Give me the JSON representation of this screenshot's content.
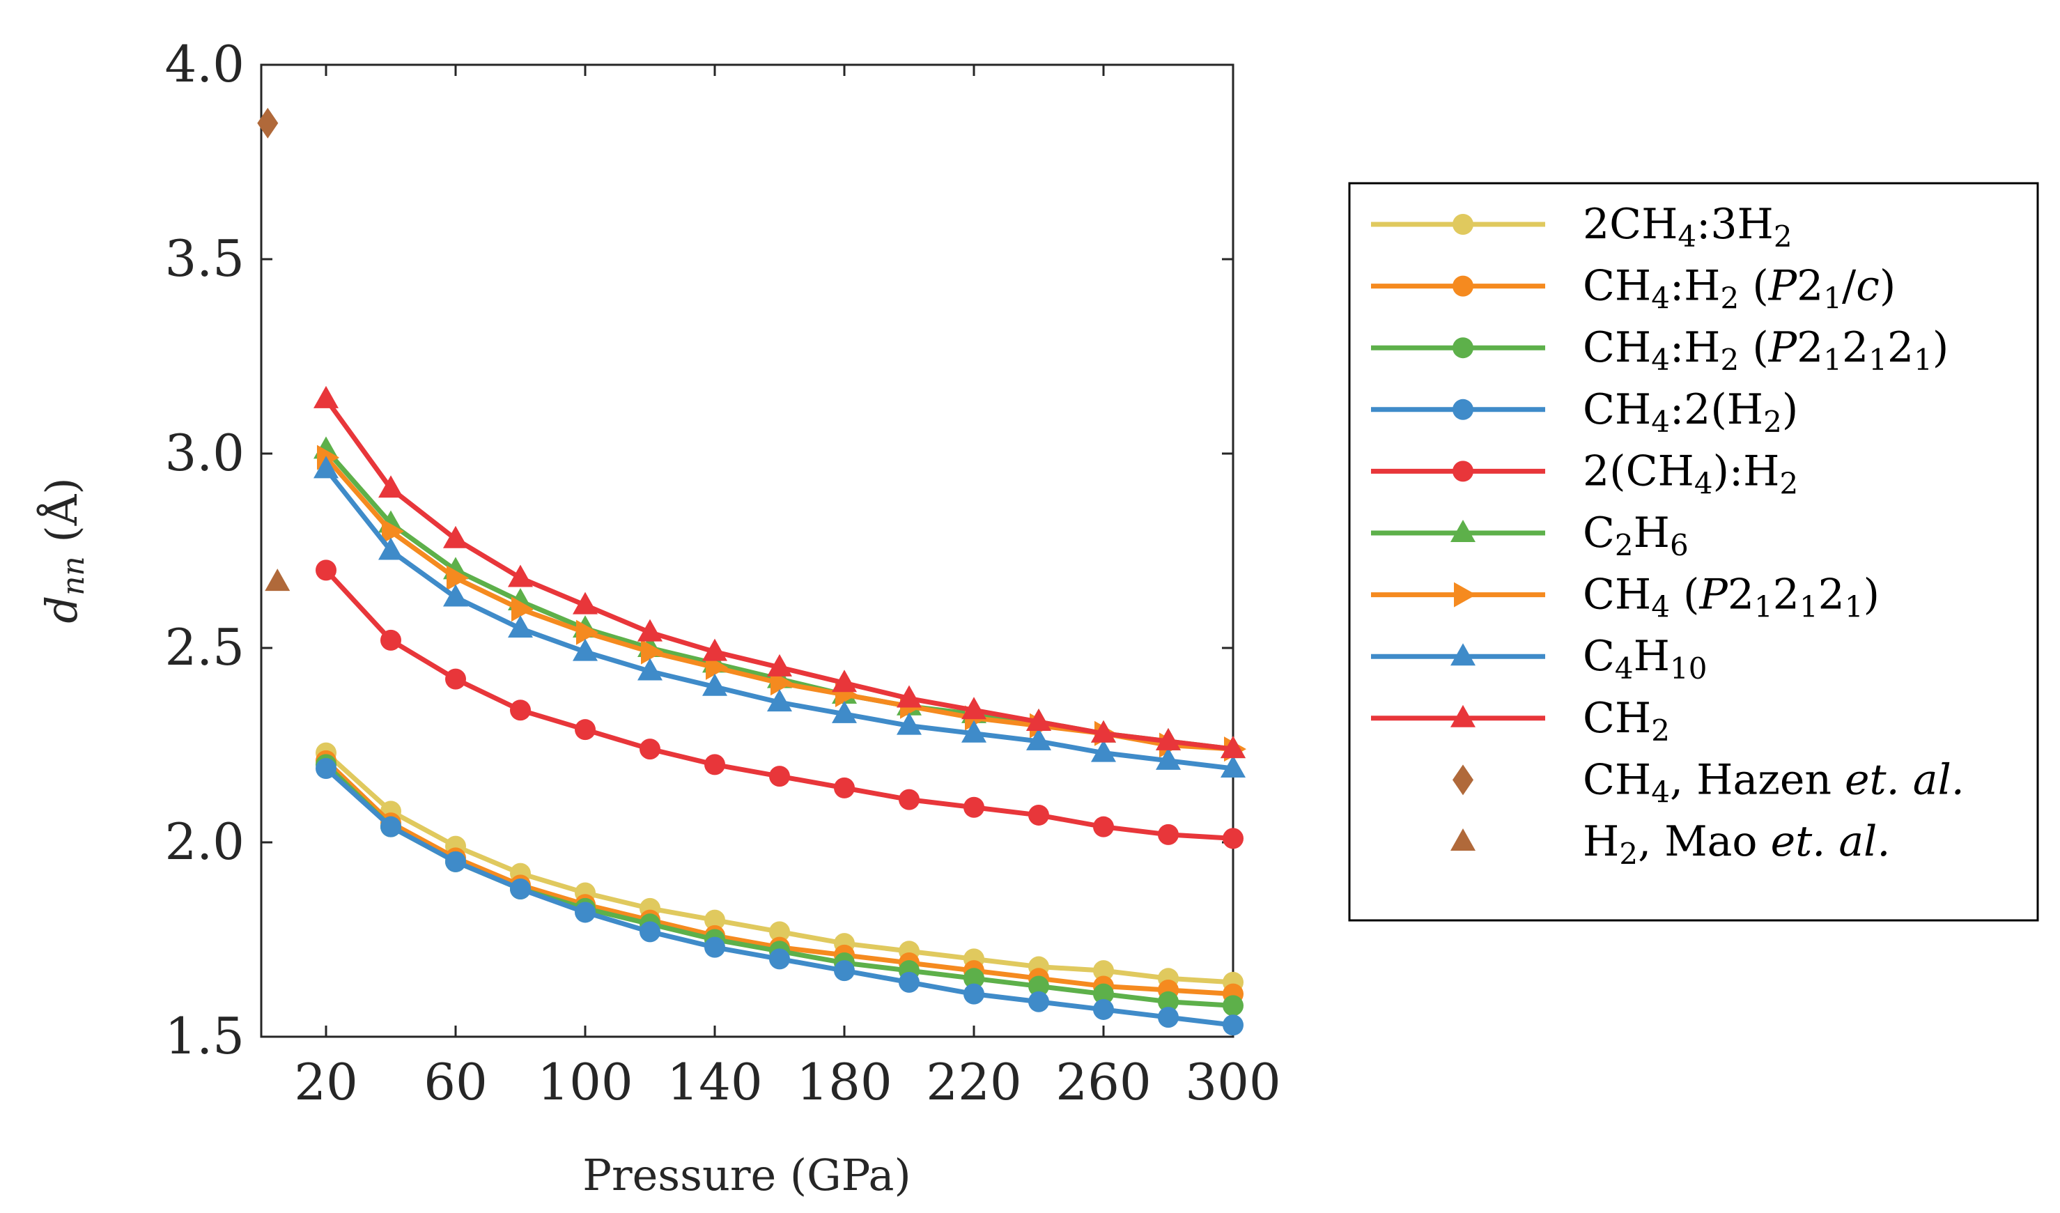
{
  "chart_data": {
    "type": "line",
    "title": "",
    "xlabel": "Pressure (GPa)",
    "ylabel": "d_nn (Å)",
    "ylabel_main": "d",
    "ylabel_sub": "nn",
    "ylabel_rest": " (Å)",
    "xlim": [
      0,
      300
    ],
    "ylim": [
      1.5,
      4.0
    ],
    "xticks": [
      20,
      60,
      100,
      140,
      180,
      220,
      260,
      300
    ],
    "xtick_labels": [
      "20",
      "60",
      "100",
      "140",
      "180",
      "220",
      "260",
      "300"
    ],
    "yticks": [
      1.5,
      2.0,
      2.5,
      3.0,
      3.5,
      4.0
    ],
    "ytick_labels": [
      "1.5",
      "2.0",
      "2.5",
      "3.0",
      "3.5",
      "4.0"
    ],
    "legend_position": "outside-right",
    "x": [
      20,
      40,
      60,
      80,
      100,
      120,
      140,
      160,
      180,
      200,
      220,
      240,
      260,
      280,
      300
    ],
    "series": [
      {
        "name": "2CH4:3H2",
        "label_parts": [
          {
            "t": "2CH"
          },
          {
            "t": "4",
            "sub": true
          },
          {
            "t": ":3H"
          },
          {
            "t": "2",
            "sub": true
          }
        ],
        "color": "#E0C95E",
        "marker": "circle",
        "values": [
          2.23,
          2.08,
          1.99,
          1.92,
          1.87,
          1.83,
          1.8,
          1.77,
          1.74,
          1.72,
          1.7,
          1.68,
          1.67,
          1.65,
          1.64
        ]
      },
      {
        "name": "CH4:H2 (P21/c)",
        "label_parts": [
          {
            "t": "CH"
          },
          {
            "t": "4",
            "sub": true
          },
          {
            "t": ":H"
          },
          {
            "t": "2",
            "sub": true
          },
          {
            "t": " ("
          },
          {
            "t": "P",
            "it": true
          },
          {
            "t": "2"
          },
          {
            "t": "1",
            "sub": true
          },
          {
            "t": "/"
          },
          {
            "t": "c",
            "it": true
          },
          {
            "t": ")"
          }
        ],
        "color": "#F58A1F",
        "marker": "circle",
        "values": [
          2.21,
          2.05,
          1.96,
          1.89,
          1.84,
          1.8,
          1.76,
          1.73,
          1.71,
          1.69,
          1.67,
          1.65,
          1.63,
          1.62,
          1.61
        ]
      },
      {
        "name": "CH4:H2 (P212121)",
        "label_parts": [
          {
            "t": "CH"
          },
          {
            "t": "4",
            "sub": true
          },
          {
            "t": ":H"
          },
          {
            "t": "2",
            "sub": true
          },
          {
            "t": " ("
          },
          {
            "t": "P",
            "it": true
          },
          {
            "t": "2"
          },
          {
            "t": "1",
            "sub": true
          },
          {
            "t": "2"
          },
          {
            "t": "1",
            "sub": true
          },
          {
            "t": "2"
          },
          {
            "t": "1",
            "sub": true
          },
          {
            "t": ")"
          }
        ],
        "color": "#5DB04A",
        "marker": "circle",
        "values": [
          2.2,
          2.04,
          1.95,
          1.88,
          1.83,
          1.79,
          1.75,
          1.72,
          1.69,
          1.67,
          1.65,
          1.63,
          1.61,
          1.59,
          1.58
        ]
      },
      {
        "name": "CH4:2(H2)",
        "label_parts": [
          {
            "t": "CH"
          },
          {
            "t": "4",
            "sub": true
          },
          {
            "t": ":2(H"
          },
          {
            "t": "2",
            "sub": true
          },
          {
            "t": ")"
          }
        ],
        "color": "#3F8BC9",
        "marker": "circle",
        "values": [
          2.19,
          2.04,
          1.95,
          1.88,
          1.82,
          1.77,
          1.73,
          1.7,
          1.67,
          1.64,
          1.61,
          1.59,
          1.57,
          1.55,
          1.53
        ]
      },
      {
        "name": "2(CH4):H2",
        "label_parts": [
          {
            "t": "2(CH"
          },
          {
            "t": "4",
            "sub": true
          },
          {
            "t": "):H"
          },
          {
            "t": "2",
            "sub": true
          }
        ],
        "color": "#E8363A",
        "marker": "circle",
        "values": [
          2.7,
          2.52,
          2.42,
          2.34,
          2.29,
          2.24,
          2.2,
          2.17,
          2.14,
          2.11,
          2.09,
          2.07,
          2.04,
          2.02,
          2.01
        ]
      },
      {
        "name": "C2H6",
        "label_parts": [
          {
            "t": "C"
          },
          {
            "t": "2",
            "sub": true
          },
          {
            "t": "H"
          },
          {
            "t": "6",
            "sub": true
          }
        ],
        "color": "#5DB04A",
        "marker": "triangle-up",
        "values": [
          3.01,
          2.82,
          2.7,
          2.62,
          2.55,
          2.5,
          2.46,
          2.42,
          2.38,
          2.35,
          2.33,
          2.31,
          2.28,
          2.26,
          2.24
        ]
      },
      {
        "name": "CH4 (P212121)",
        "label_parts": [
          {
            "t": "CH"
          },
          {
            "t": "4",
            "sub": true
          },
          {
            "t": " ("
          },
          {
            "t": "P",
            "it": true
          },
          {
            "t": "2"
          },
          {
            "t": "1",
            "sub": true
          },
          {
            "t": "2"
          },
          {
            "t": "1",
            "sub": true
          },
          {
            "t": "2"
          },
          {
            "t": "1",
            "sub": true
          },
          {
            "t": ")"
          }
        ],
        "color": "#F58A1F",
        "marker": "triangle-right",
        "values": [
          2.99,
          2.8,
          2.68,
          2.6,
          2.54,
          2.49,
          2.45,
          2.41,
          2.38,
          2.35,
          2.32,
          2.3,
          2.28,
          2.25,
          2.24
        ]
      },
      {
        "name": "C4H10",
        "label_parts": [
          {
            "t": "C"
          },
          {
            "t": "4",
            "sub": true
          },
          {
            "t": "H"
          },
          {
            "t": "10",
            "sub": true
          }
        ],
        "color": "#3F8BC9",
        "marker": "triangle-up",
        "values": [
          2.96,
          2.75,
          2.63,
          2.55,
          2.49,
          2.44,
          2.4,
          2.36,
          2.33,
          2.3,
          2.28,
          2.26,
          2.23,
          2.21,
          2.19
        ]
      },
      {
        "name": "CH2",
        "label_parts": [
          {
            "t": "CH"
          },
          {
            "t": "2",
            "sub": true
          }
        ],
        "color": "#E8363A",
        "marker": "triangle-up",
        "values": [
          3.14,
          2.91,
          2.78,
          2.68,
          2.61,
          2.54,
          2.49,
          2.45,
          2.41,
          2.37,
          2.34,
          2.31,
          2.28,
          2.26,
          2.24
        ]
      }
    ],
    "experimental": [
      {
        "name": "CH4, Hazen et. al.",
        "label_parts": [
          {
            "t": "CH"
          },
          {
            "t": "4",
            "sub": true
          },
          {
            "t": ", Hazen "
          },
          {
            "t": "et. al.",
            "it": true
          }
        ],
        "color": "#B0693A",
        "marker": "diamond",
        "x": 2,
        "y": 3.85
      },
      {
        "name": "H2, Mao et. al.",
        "label_parts": [
          {
            "t": "H"
          },
          {
            "t": "2",
            "sub": true
          },
          {
            "t": ", Mao "
          },
          {
            "t": "et. al.",
            "it": true
          }
        ],
        "color": "#B0693A",
        "marker": "triangle-up",
        "x": 5,
        "y": 2.67
      }
    ]
  }
}
